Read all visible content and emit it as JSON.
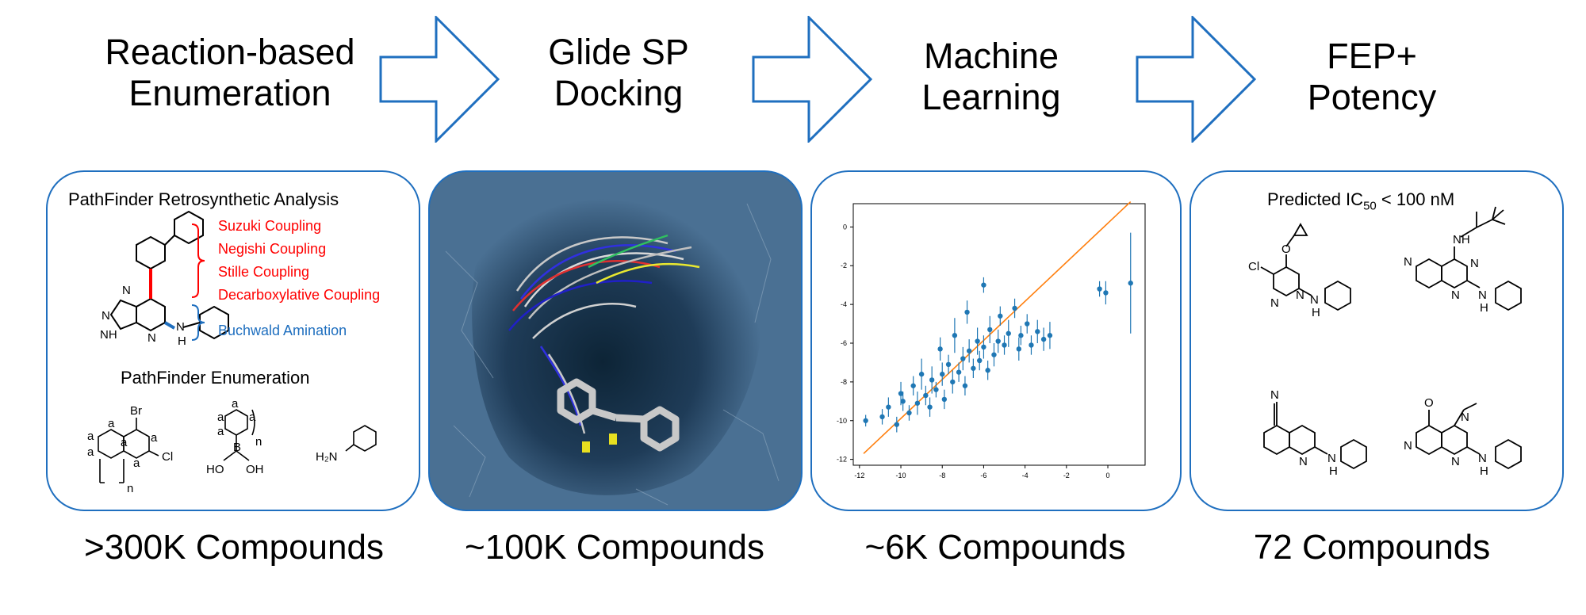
{
  "stages": [
    {
      "title_line1": "Reaction-based",
      "title_line2": "Enumeration",
      "count": ">300K Compounds"
    },
    {
      "title_line1": "Glide SP",
      "title_line2": "Docking",
      "count": "~100K Compounds"
    },
    {
      "title_line1": "Machine",
      "title_line2": "Learning",
      "count": "~6K Compounds"
    },
    {
      "title_line1": "FEP+",
      "title_line2": "Potency",
      "count": "72 Compounds"
    }
  ],
  "panel1": {
    "heading": "PathFinder Retrosynthetic Analysis",
    "reactions_red": [
      "Suzuki Coupling",
      "Negishi Coupling",
      "Stille Coupling",
      "Decarboxylative Coupling"
    ],
    "reaction_blue": "Buchwald Amination",
    "subheading": "PathFinder Enumeration",
    "atom_labels": {
      "N": "N",
      "H": "H",
      "NH": "NH",
      "Br": "Br",
      "Cl": "Cl",
      "B": "B",
      "HO": "HO",
      "OH": "OH",
      "H2N": "H₂N",
      "a": "a",
      "n": "n"
    }
  },
  "panel4": {
    "heading_prefix": "Predicted IC",
    "heading_sub": "50",
    "heading_suffix": " < 100 nM",
    "atom_labels": {
      "O": "O",
      "Cl": "Cl",
      "N": "N",
      "H": "H",
      "NH": "NH"
    }
  },
  "colors": {
    "frame": "#1f6fbf",
    "red_text": "#ff0000",
    "blue_text": "#1f6fbf",
    "points": "#1f77b4",
    "fit_line": "#ff7f0e",
    "docking_bg": "#3a5f80"
  },
  "chart_data": {
    "type": "scatter",
    "title": "",
    "xlabel": "",
    "ylabel": "",
    "xlim": [
      -12.3,
      1.8
    ],
    "ylim": [
      -12.3,
      1.2
    ],
    "xticks": [
      -12,
      -10,
      -8,
      -6,
      -4,
      -2,
      0
    ],
    "yticks": [
      0,
      -2,
      -4,
      -6,
      -8,
      -10,
      -12
    ],
    "xtick_labels": [
      "-12",
      "-10",
      "-8",
      "-6",
      "-4",
      "-2",
      "0"
    ],
    "ytick_labels": [
      "0",
      "-2",
      "-4",
      "-6",
      "-8",
      "-10",
      "-12"
    ],
    "fit_line": {
      "x": [
        -11.8,
        1.1
      ],
      "y": [
        -11.7,
        1.3
      ]
    },
    "points": [
      {
        "x": -11.7,
        "y": -10.0,
        "err": 0.3
      },
      {
        "x": -10.9,
        "y": -9.8,
        "err": 0.4
      },
      {
        "x": -10.6,
        "y": -9.3,
        "err": 0.5
      },
      {
        "x": -10.2,
        "y": -10.2,
        "err": 0.4
      },
      {
        "x": -10.0,
        "y": -8.6,
        "err": 0.6
      },
      {
        "x": -9.9,
        "y": -9.0,
        "err": 0.5
      },
      {
        "x": -9.6,
        "y": -9.6,
        "err": 0.4
      },
      {
        "x": -9.4,
        "y": -8.2,
        "err": 0.5
      },
      {
        "x": -9.2,
        "y": -9.1,
        "err": 0.6
      },
      {
        "x": -9.0,
        "y": -7.6,
        "err": 0.8
      },
      {
        "x": -8.8,
        "y": -8.7,
        "err": 0.5
      },
      {
        "x": -8.6,
        "y": -9.3,
        "err": 0.5
      },
      {
        "x": -8.5,
        "y": -7.9,
        "err": 0.7
      },
      {
        "x": -8.3,
        "y": -8.4,
        "err": 0.4
      },
      {
        "x": -8.1,
        "y": -6.3,
        "err": 0.6
      },
      {
        "x": -8.0,
        "y": -7.6,
        "err": 0.6
      },
      {
        "x": -7.9,
        "y": -8.9,
        "err": 0.5
      },
      {
        "x": -7.7,
        "y": -7.1,
        "err": 0.5
      },
      {
        "x": -7.5,
        "y": -8.0,
        "err": 0.6
      },
      {
        "x": -7.4,
        "y": -5.6,
        "err": 0.9
      },
      {
        "x": -7.2,
        "y": -7.5,
        "err": 0.5
      },
      {
        "x": -7.0,
        "y": -6.8,
        "err": 0.6
      },
      {
        "x": -6.9,
        "y": -8.2,
        "err": 0.5
      },
      {
        "x": -6.8,
        "y": -4.4,
        "err": 0.6
      },
      {
        "x": -6.7,
        "y": -6.4,
        "err": 0.6
      },
      {
        "x": -6.5,
        "y": -7.3,
        "err": 0.5
      },
      {
        "x": -6.3,
        "y": -5.9,
        "err": 0.7
      },
      {
        "x": -6.2,
        "y": -6.9,
        "err": 0.5
      },
      {
        "x": -6.0,
        "y": -3.0,
        "err": 0.4
      },
      {
        "x": -6.0,
        "y": -6.2,
        "err": 0.6
      },
      {
        "x": -5.8,
        "y": -7.4,
        "err": 0.5
      },
      {
        "x": -5.7,
        "y": -5.3,
        "err": 0.7
      },
      {
        "x": -5.5,
        "y": -6.6,
        "err": 0.6
      },
      {
        "x": -5.3,
        "y": -5.9,
        "err": 0.6
      },
      {
        "x": -5.2,
        "y": -4.6,
        "err": 0.5
      },
      {
        "x": -5.0,
        "y": -6.1,
        "err": 0.5
      },
      {
        "x": -4.8,
        "y": -5.5,
        "err": 0.7
      },
      {
        "x": -4.5,
        "y": -4.2,
        "err": 0.5
      },
      {
        "x": -4.3,
        "y": -6.3,
        "err": 0.6
      },
      {
        "x": -4.2,
        "y": -5.6,
        "err": 0.5
      },
      {
        "x": -3.9,
        "y": -5.0,
        "err": 0.5
      },
      {
        "x": -3.7,
        "y": -6.1,
        "err": 0.5
      },
      {
        "x": -3.4,
        "y": -5.4,
        "err": 0.6
      },
      {
        "x": -3.1,
        "y": -5.8,
        "err": 0.6
      },
      {
        "x": -2.8,
        "y": -5.6,
        "err": 0.7
      },
      {
        "x": -0.4,
        "y": -3.2,
        "err": 0.4
      },
      {
        "x": -0.1,
        "y": -3.4,
        "err": 0.6
      },
      {
        "x": 1.1,
        "y": -2.9,
        "err": 2.6
      }
    ]
  }
}
